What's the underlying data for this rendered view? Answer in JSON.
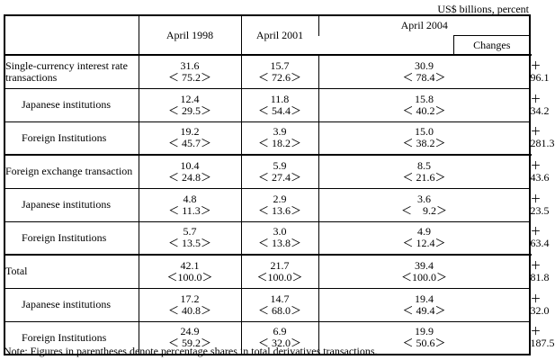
{
  "unit_label": "US$ billions, percent",
  "columns": [
    "April 1998",
    "April 2001",
    "April 2004"
  ],
  "changes_label": "Changes",
  "rows": [
    {
      "label": "Single-currency interest rate transactions",
      "indent": false,
      "group_start": true,
      "values": [
        {
          "v": "31.6",
          "s": "＜ 75.2＞"
        },
        {
          "v": "15.7",
          "s": "＜ 72.6＞"
        },
        {
          "v": "30.9",
          "s": "＜ 78.4＞"
        }
      ],
      "change": "＋ 96.1"
    },
    {
      "label": "Japanese institutions",
      "indent": true,
      "values": [
        {
          "v": "12.4",
          "s": "＜ 29.5＞"
        },
        {
          "v": "11.8",
          "s": "＜ 54.4＞"
        },
        {
          "v": "15.8",
          "s": "＜ 40.2＞"
        }
      ],
      "change": "＋ 34.2"
    },
    {
      "label": "Foreign Institutions",
      "indent": true,
      "values": [
        {
          "v": "19.2",
          "s": "＜ 45.7＞"
        },
        {
          "v": "3.9",
          "s": "＜ 18.2＞"
        },
        {
          "v": "15.0",
          "s": "＜ 38.2＞"
        }
      ],
      "change": "＋281.3"
    },
    {
      "label": "Foreign exchange transaction",
      "indent": false,
      "group_start": true,
      "values": [
        {
          "v": "10.4",
          "s": "＜ 24.8＞"
        },
        {
          "v": "5.9",
          "s": "＜ 27.4＞"
        },
        {
          "v": "8.5",
          "s": "＜ 21.6＞"
        }
      ],
      "change": "＋ 43.6"
    },
    {
      "label": "Japanese institutions",
      "indent": true,
      "values": [
        {
          "v": "4.8",
          "s": "＜ 11.3＞"
        },
        {
          "v": "2.9",
          "s": "＜ 13.6＞"
        },
        {
          "v": "3.6",
          "s": "＜　9.2＞"
        }
      ],
      "change": "＋ 23.5"
    },
    {
      "label": "Foreign Institutions",
      "indent": true,
      "values": [
        {
          "v": "5.7",
          "s": "＜ 13.5＞"
        },
        {
          "v": "3.0",
          "s": "＜ 13.8＞"
        },
        {
          "v": "4.9",
          "s": "＜ 12.4＞"
        }
      ],
      "change": "＋ 63.4"
    },
    {
      "label": "Total",
      "indent": false,
      "group_start": true,
      "thick": true,
      "values": [
        {
          "v": "42.1",
          "s": "＜100.0＞"
        },
        {
          "v": "21.7",
          "s": "＜100.0＞"
        },
        {
          "v": "39.4",
          "s": "＜100.0＞"
        }
      ],
      "change": "＋ 81.8"
    },
    {
      "label": "Japanese institutions",
      "indent": true,
      "values": [
        {
          "v": "17.2",
          "s": "＜ 40.8＞"
        },
        {
          "v": "14.7",
          "s": "＜ 68.0＞"
        },
        {
          "v": "19.4",
          "s": "＜ 49.4＞"
        }
      ],
      "change": "＋ 32.0"
    },
    {
      "label": "Foreign Institutions",
      "indent": true,
      "values": [
        {
          "v": "24.9",
          "s": "＜ 59.2＞"
        },
        {
          "v": "6.9",
          "s": "＜ 32.0＞"
        },
        {
          "v": "19.9",
          "s": "＜ 50.6＞"
        }
      ],
      "change": "＋187.5"
    }
  ],
  "note": "Note: Figures in parentheses denote percentage shares in total derivatives transactions."
}
